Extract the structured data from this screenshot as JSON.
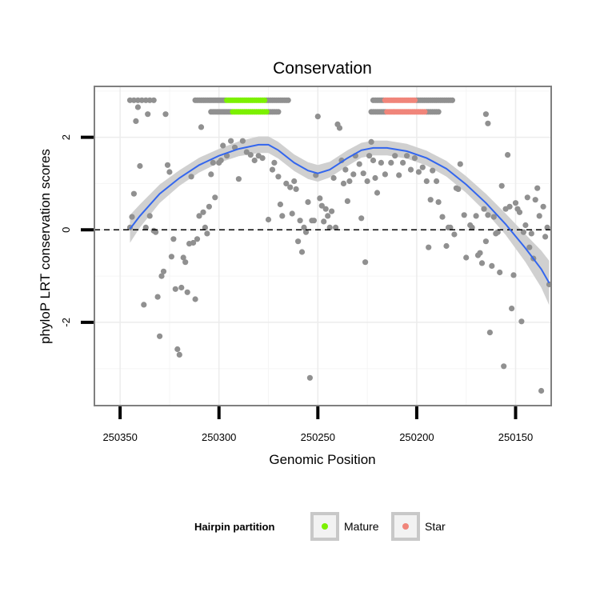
{
  "chart_data": {
    "type": "scatter",
    "title": "Conservation",
    "xlabel": "Genomic Position",
    "ylabel": "phyloP LRT conservation scores",
    "x_reversed": true,
    "xlim": [
      250363,
      250132
    ],
    "ylim": [
      -3.8,
      3.1
    ],
    "x_ticks": [
      250350,
      250300,
      250250,
      250200,
      250150
    ],
    "y_ticks": [
      -2,
      0,
      2
    ],
    "grid": true,
    "reference_line": {
      "y": 0,
      "style": "dashed"
    },
    "legend": {
      "title": "Hairpin partition",
      "position": "bottom",
      "entries": [
        {
          "label": "Mature",
          "color": "#7cf000"
        },
        {
          "label": "Star",
          "color": "#f0857a"
        }
      ]
    },
    "colors": {
      "other": "#909090",
      "smooth": "#3366ee",
      "band": "#d0d0d0",
      "panel_border": "#7f7f7f"
    },
    "other_points": [
      [
        250345,
        0.05
      ],
      [
        250344,
        0.28
      ],
      [
        250343,
        0.78
      ],
      [
        250342,
        2.35
      ],
      [
        250341,
        2.65
      ],
      [
        250340,
        1.38
      ],
      [
        250338,
        -1.62
      ],
      [
        250337,
        0.05
      ],
      [
        250336,
        2.5
      ],
      [
        250335,
        0.3
      ],
      [
        250333,
        -0.02
      ],
      [
        250332,
        -0.05
      ],
      [
        250331,
        -1.45
      ],
      [
        250330,
        -2.3
      ],
      [
        250329,
        -1.0
      ],
      [
        250328,
        -0.9
      ],
      [
        250327,
        2.5
      ],
      [
        250326,
        1.4
      ],
      [
        250325,
        1.25
      ],
      [
        250324,
        -0.58
      ],
      [
        250323,
        -0.2
      ],
      [
        250322,
        -1.28
      ],
      [
        250321,
        -2.58
      ],
      [
        250320,
        -2.7
      ],
      [
        250319,
        -1.25
      ],
      [
        250318,
        -0.6
      ],
      [
        250317,
        -0.7
      ],
      [
        250316,
        -1.35
      ],
      [
        250315,
        -0.3
      ],
      [
        250314,
        1.15
      ],
      [
        250313,
        -0.28
      ],
      [
        250312,
        -1.5
      ],
      [
        250311,
        -0.2
      ],
      [
        250310,
        0.3
      ],
      [
        250309,
        2.22
      ],
      [
        250308,
        0.38
      ],
      [
        250307,
        0.05
      ],
      [
        250306,
        -0.08
      ],
      [
        250305,
        0.5
      ],
      [
        250304,
        1.2
      ],
      [
        250303,
        1.45
      ],
      [
        250302,
        0.7
      ],
      [
        250300,
        1.45
      ],
      [
        250299,
        1.5
      ],
      [
        250298,
        1.82
      ],
      [
        250296,
        1.6
      ],
      [
        250294,
        1.92
      ],
      [
        250292,
        1.78
      ],
      [
        250290,
        1.1
      ],
      [
        250288,
        1.92
      ],
      [
        250286,
        1.68
      ],
      [
        250284,
        1.62
      ],
      [
        250282,
        1.5
      ],
      [
        250280,
        1.6
      ],
      [
        250278,
        1.55
      ],
      [
        250275,
        0.22
      ],
      [
        250273,
        1.3
      ],
      [
        250272,
        1.45
      ],
      [
        250270,
        1.15
      ],
      [
        250269,
        0.55
      ],
      [
        250268,
        0.3
      ],
      [
        250266,
        1.0
      ],
      [
        250264,
        0.92
      ],
      [
        250263,
        0.35
      ],
      [
        250262,
        1.05
      ],
      [
        250261,
        0.88
      ],
      [
        250260,
        -0.25
      ],
      [
        250259,
        0.2
      ],
      [
        250258,
        -0.48
      ],
      [
        250257,
        0.05
      ],
      [
        250256,
        -0.05
      ],
      [
        250255,
        0.6
      ],
      [
        250254,
        -3.2
      ],
      [
        250253,
        0.2
      ],
      [
        250252,
        0.2
      ],
      [
        250251,
        1.18
      ],
      [
        250250,
        2.45
      ],
      [
        250249,
        0.68
      ],
      [
        250248,
        0.52
      ],
      [
        250247,
        0.18
      ],
      [
        250246,
        0.45
      ],
      [
        250245,
        0.3
      ],
      [
        250244,
        0.05
      ],
      [
        250243,
        0.4
      ],
      [
        250242,
        1.12
      ],
      [
        250241,
        0.05
      ],
      [
        250240,
        2.28
      ],
      [
        250239,
        2.2
      ],
      [
        250238,
        1.5
      ],
      [
        250237,
        1.0
      ],
      [
        250236,
        1.3
      ],
      [
        250235,
        0.62
      ],
      [
        250234,
        1.05
      ],
      [
        250232,
        1.2
      ],
      [
        250231,
        1.6
      ],
      [
        250229,
        1.42
      ],
      [
        250228,
        0.25
      ],
      [
        250227,
        1.22
      ],
      [
        250226,
        -0.7
      ],
      [
        250225,
        1.05
      ],
      [
        250224,
        1.6
      ],
      [
        250223,
        1.9
      ],
      [
        250222,
        1.5
      ],
      [
        250221,
        1.12
      ],
      [
        250220,
        0.8
      ],
      [
        250218,
        1.45
      ],
      [
        250216,
        1.2
      ],
      [
        250213,
        1.45
      ],
      [
        250211,
        1.6
      ],
      [
        250209,
        1.18
      ],
      [
        250207,
        1.45
      ],
      [
        250205,
        1.6
      ],
      [
        250203,
        1.3
      ],
      [
        250201,
        1.55
      ],
      [
        250199,
        1.25
      ],
      [
        250197,
        1.35
      ],
      [
        250195,
        1.05
      ],
      [
        250194,
        -0.38
      ],
      [
        250193,
        0.65
      ],
      [
        250192,
        1.28
      ],
      [
        250190,
        1.05
      ],
      [
        250189,
        0.6
      ],
      [
        250187,
        0.28
      ],
      [
        250185,
        -0.35
      ],
      [
        250184,
        0.05
      ],
      [
        250183,
        0.05
      ],
      [
        250181,
        -0.1
      ],
      [
        250180,
        0.9
      ],
      [
        250179,
        0.88
      ],
      [
        250178,
        1.42
      ],
      [
        250176,
        0.32
      ],
      [
        250175,
        -0.6
      ],
      [
        250173,
        0.1
      ],
      [
        250172,
        0.05
      ],
      [
        250170,
        0.3
      ],
      [
        250169,
        -0.55
      ],
      [
        250168,
        -0.5
      ],
      [
        250167,
        -0.72
      ],
      [
        250166,
        0.45
      ],
      [
        250165,
        -0.25
      ],
      [
        250164,
        0.32
      ],
      [
        250163,
        -2.22
      ],
      [
        250162,
        -0.78
      ],
      [
        250161,
        0.28
      ],
      [
        250160,
        -0.08
      ],
      [
        250159,
        -0.05
      ],
      [
        250158,
        -0.92
      ],
      [
        250157,
        0.95
      ],
      [
        250156,
        -2.95
      ],
      [
        250155,
        0.45
      ],
      [
        250154,
        1.62
      ],
      [
        250153,
        0.5
      ],
      [
        250152,
        -1.7
      ],
      [
        250151,
        -0.98
      ],
      [
        250150,
        0.58
      ],
      [
        250149,
        0.45
      ],
      [
        250148,
        0.38
      ],
      [
        250147,
        -1.98
      ],
      [
        250146,
        -0.05
      ],
      [
        250145,
        0.1
      ],
      [
        250144,
        0.7
      ],
      [
        250143,
        -0.38
      ],
      [
        250142,
        -0.08
      ],
      [
        250141,
        -0.62
      ],
      [
        250140,
        0.65
      ],
      [
        250139,
        0.9
      ],
      [
        250138,
        0.3
      ],
      [
        250137,
        -3.48
      ],
      [
        250136,
        0.5
      ],
      [
        250135,
        -0.15
      ],
      [
        250134,
        0.05
      ],
      [
        250133,
        -1.18
      ],
      [
        250345,
        2.8
      ],
      [
        250343,
        2.8
      ],
      [
        250341,
        2.8
      ],
      [
        250339,
        2.8
      ],
      [
        250337,
        2.8
      ],
      [
        250335,
        2.8
      ],
      [
        250333,
        2.8
      ],
      [
        250312,
        2.8
      ],
      [
        250311,
        2.8
      ],
      [
        250310,
        2.8
      ],
      [
        250309,
        2.8
      ],
      [
        250308,
        2.8
      ],
      [
        250307,
        2.8
      ],
      [
        250306,
        2.8
      ],
      [
        250305,
        2.8
      ],
      [
        250304,
        2.8
      ],
      [
        250303,
        2.8
      ],
      [
        250302,
        2.8
      ],
      [
        250301,
        2.8
      ],
      [
        250300,
        2.8
      ],
      [
        250299,
        2.8
      ],
      [
        250298,
        2.8
      ],
      [
        250297,
        2.8
      ],
      [
        250276,
        2.8
      ],
      [
        250275,
        2.8
      ],
      [
        250274,
        2.8
      ],
      [
        250273,
        2.8
      ],
      [
        250272,
        2.8
      ],
      [
        250271,
        2.8
      ],
      [
        250270,
        2.8
      ],
      [
        250269,
        2.8
      ],
      [
        250268,
        2.8
      ],
      [
        250267,
        2.8
      ],
      [
        250266,
        2.8
      ],
      [
        250265,
        2.8
      ],
      [
        250304,
        2.55
      ],
      [
        250303,
        2.55
      ],
      [
        250302,
        2.55
      ],
      [
        250301,
        2.55
      ],
      [
        250300,
        2.55
      ],
      [
        250299,
        2.55
      ],
      [
        250298,
        2.55
      ],
      [
        250297,
        2.55
      ],
      [
        250296,
        2.55
      ],
      [
        250295,
        2.55
      ],
      [
        250294,
        2.55
      ],
      [
        250275,
        2.55
      ],
      [
        250274,
        2.55
      ],
      [
        250273,
        2.55
      ],
      [
        250272,
        2.55
      ],
      [
        250271,
        2.55
      ],
      [
        250270,
        2.55
      ],
      [
        250222,
        2.8
      ],
      [
        250221,
        2.8
      ],
      [
        250220,
        2.8
      ],
      [
        250219,
        2.8
      ],
      [
        250218,
        2.8
      ],
      [
        250217,
        2.8
      ],
      [
        250200,
        2.8
      ],
      [
        250199,
        2.8
      ],
      [
        250198,
        2.8
      ],
      [
        250197,
        2.8
      ],
      [
        250196,
        2.8
      ],
      [
        250195,
        2.8
      ],
      [
        250194,
        2.8
      ],
      [
        250193,
        2.8
      ],
      [
        250192,
        2.8
      ],
      [
        250191,
        2.8
      ],
      [
        250190,
        2.8
      ],
      [
        250189,
        2.8
      ],
      [
        250188,
        2.8
      ],
      [
        250187,
        2.8
      ],
      [
        250186,
        2.8
      ],
      [
        250185,
        2.8
      ],
      [
        250184,
        2.8
      ],
      [
        250183,
        2.8
      ],
      [
        250182,
        2.8
      ],
      [
        250223,
        2.55
      ],
      [
        250222,
        2.55
      ],
      [
        250221,
        2.55
      ],
      [
        250220,
        2.55
      ],
      [
        250219,
        2.55
      ],
      [
        250218,
        2.55
      ],
      [
        250217,
        2.55
      ],
      [
        250216,
        2.55
      ],
      [
        250195,
        2.55
      ],
      [
        250194,
        2.55
      ],
      [
        250193,
        2.55
      ],
      [
        250192,
        2.55
      ],
      [
        250191,
        2.55
      ],
      [
        250190,
        2.55
      ],
      [
        250189,
        2.55
      ],
      [
        250165,
        2.5
      ],
      [
        250164,
        2.3
      ]
    ],
    "mature_points": [
      [
        250296,
        2.8
      ],
      [
        250295,
        2.8
      ],
      [
        250294,
        2.8
      ],
      [
        250293,
        2.8
      ],
      [
        250292,
        2.8
      ],
      [
        250291,
        2.8
      ],
      [
        250290,
        2.8
      ],
      [
        250289,
        2.8
      ],
      [
        250288,
        2.8
      ],
      [
        250287,
        2.8
      ],
      [
        250286,
        2.8
      ],
      [
        250285,
        2.8
      ],
      [
        250284,
        2.8
      ],
      [
        250283,
        2.8
      ],
      [
        250282,
        2.8
      ],
      [
        250281,
        2.8
      ],
      [
        250280,
        2.8
      ],
      [
        250279,
        2.8
      ],
      [
        250278,
        2.8
      ],
      [
        250277,
        2.8
      ],
      [
        250293,
        2.55
      ],
      [
        250292,
        2.55
      ],
      [
        250291,
        2.55
      ],
      [
        250290,
        2.55
      ],
      [
        250289,
        2.55
      ],
      [
        250288,
        2.55
      ],
      [
        250287,
        2.55
      ],
      [
        250286,
        2.55
      ],
      [
        250285,
        2.55
      ],
      [
        250284,
        2.55
      ],
      [
        250283,
        2.55
      ],
      [
        250282,
        2.55
      ],
      [
        250281,
        2.55
      ],
      [
        250280,
        2.55
      ],
      [
        250279,
        2.55
      ],
      [
        250278,
        2.55
      ],
      [
        250277,
        2.55
      ],
      [
        250276,
        2.55
      ]
    ],
    "star_points": [
      [
        250216,
        2.8
      ],
      [
        250215,
        2.8
      ],
      [
        250214,
        2.8
      ],
      [
        250213,
        2.8
      ],
      [
        250212,
        2.8
      ],
      [
        250211,
        2.8
      ],
      [
        250210,
        2.8
      ],
      [
        250209,
        2.8
      ],
      [
        250208,
        2.8
      ],
      [
        250207,
        2.8
      ],
      [
        250206,
        2.8
      ],
      [
        250205,
        2.8
      ],
      [
        250204,
        2.8
      ],
      [
        250203,
        2.8
      ],
      [
        250202,
        2.8
      ],
      [
        250201,
        2.8
      ],
      [
        250215,
        2.55
      ],
      [
        250214,
        2.55
      ],
      [
        250213,
        2.55
      ],
      [
        250212,
        2.55
      ],
      [
        250211,
        2.55
      ],
      [
        250210,
        2.55
      ],
      [
        250209,
        2.55
      ],
      [
        250208,
        2.55
      ],
      [
        250207,
        2.55
      ],
      [
        250206,
        2.55
      ],
      [
        250205,
        2.55
      ],
      [
        250204,
        2.55
      ],
      [
        250203,
        2.55
      ],
      [
        250202,
        2.55
      ],
      [
        250201,
        2.55
      ],
      [
        250200,
        2.55
      ],
      [
        250199,
        2.55
      ],
      [
        250198,
        2.55
      ],
      [
        250197,
        2.55
      ],
      [
        250196,
        2.55
      ]
    ],
    "smooth_fit": [
      [
        250345,
        0.02,
        0.3
      ],
      [
        250340,
        0.3,
        0.25
      ],
      [
        250330,
        0.78,
        0.2
      ],
      [
        250320,
        1.12,
        0.17
      ],
      [
        250310,
        1.4,
        0.16
      ],
      [
        250300,
        1.6,
        0.15
      ],
      [
        250290,
        1.75,
        0.16
      ],
      [
        250280,
        1.84,
        0.18
      ],
      [
        250275,
        1.84,
        0.18
      ],
      [
        250270,
        1.72,
        0.18
      ],
      [
        250262,
        1.45,
        0.18
      ],
      [
        250255,
        1.28,
        0.18
      ],
      [
        250250,
        1.22,
        0.18
      ],
      [
        250244,
        1.3,
        0.17
      ],
      [
        250235,
        1.55,
        0.17
      ],
      [
        250228,
        1.72,
        0.16
      ],
      [
        250222,
        1.77,
        0.16
      ],
      [
        250215,
        1.77,
        0.16
      ],
      [
        250205,
        1.7,
        0.16
      ],
      [
        250195,
        1.55,
        0.16
      ],
      [
        250185,
        1.32,
        0.17
      ],
      [
        250175,
        0.98,
        0.18
      ],
      [
        250165,
        0.58,
        0.2
      ],
      [
        250155,
        0.12,
        0.23
      ],
      [
        250145,
        -0.4,
        0.3
      ],
      [
        250137,
        -0.85,
        0.4
      ],
      [
        250133,
        -1.15,
        0.48
      ]
    ]
  }
}
